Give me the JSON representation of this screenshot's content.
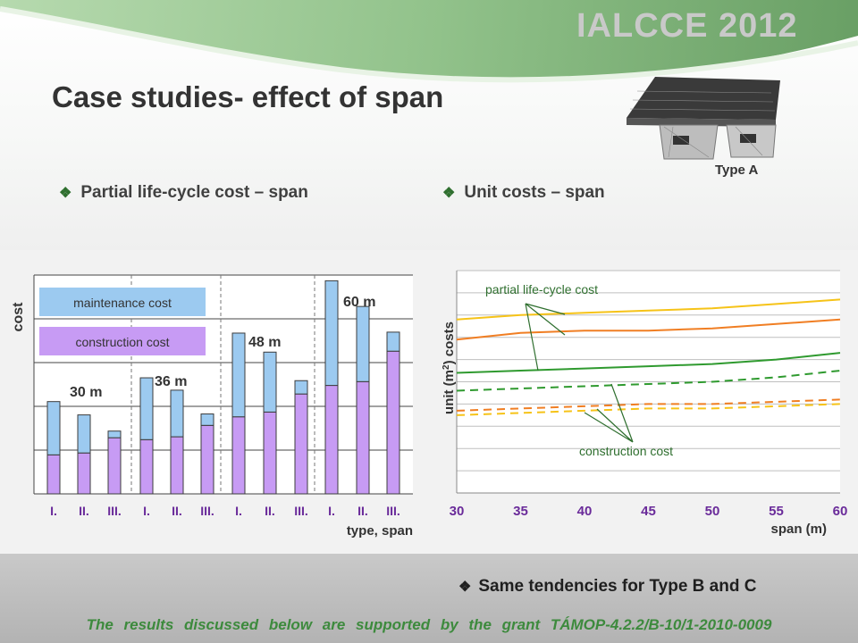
{
  "header": {
    "conference": "IALCCE 2012",
    "title": "Case studies- effect of span",
    "image_caption": "Type A",
    "bullet_left": "Partial life-cycle cost – span",
    "bullet_right": "Unit costs – span"
  },
  "footer": {
    "note": "Same tendencies for Type B and C",
    "grant": "The results discussed below are supported by the grant TÁMOP-4.2.2/B-10/1-2010-0009"
  },
  "colors": {
    "maintenance": "#9ccaf0",
    "construction": "#c79bf4",
    "line_orange": "#f07e23",
    "line_yellow": "#f6c318",
    "line_green": "#2f9a2f",
    "bullet_green": "#2f6f2f"
  },
  "chart_data": [
    {
      "type": "bar",
      "stacked": true,
      "ylabel": "cost",
      "xlabel": "type, span",
      "categories": [
        "I.",
        "II.",
        "III.",
        "I.",
        "II.",
        "III.",
        "I.",
        "II.",
        "III.",
        "I.",
        "II.",
        "III."
      ],
      "groups": [
        "30 m",
        "36 m",
        "48 m",
        "60 m"
      ],
      "ylim": [
        0,
        230
      ],
      "series": [
        {
          "name": "construction cost",
          "values": [
            41,
            43,
            59,
            57,
            60,
            72,
            81,
            86,
            105,
            114,
            118,
            150
          ]
        },
        {
          "name": "maintenance cost",
          "values": [
            56,
            40,
            7,
            65,
            49,
            12,
            88,
            63,
            14,
            110,
            79,
            20
          ]
        }
      ],
      "legend": "top-left"
    },
    {
      "type": "line",
      "ylabel": "unit (m2) costs",
      "xlabel": "span (m)",
      "x": [
        30,
        35,
        40,
        45,
        50,
        55,
        60
      ],
      "xlim": [
        30,
        60
      ],
      "ylim": [
        0,
        100
      ],
      "grid": true,
      "annotations": [
        "partial life-cycle cost",
        "construction cost"
      ],
      "series": [
        {
          "style": "solid",
          "color": "yellow",
          "values": [
            78,
            80,
            81,
            82,
            83,
            85,
            87
          ]
        },
        {
          "style": "solid",
          "color": "orange",
          "values": [
            69,
            72,
            73,
            73,
            74,
            76,
            78
          ]
        },
        {
          "style": "solid",
          "color": "green",
          "values": [
            54,
            55,
            56,
            57,
            58,
            60,
            63
          ]
        },
        {
          "style": "dashed",
          "color": "green",
          "values": [
            46,
            47,
            48,
            49,
            50,
            52,
            55
          ]
        },
        {
          "style": "dashed",
          "color": "orange",
          "values": [
            37,
            38,
            39,
            40,
            40,
            41,
            42
          ]
        },
        {
          "style": "dashed",
          "color": "yellow",
          "values": [
            35,
            36,
            37,
            38,
            38,
            39,
            40
          ]
        }
      ]
    }
  ]
}
